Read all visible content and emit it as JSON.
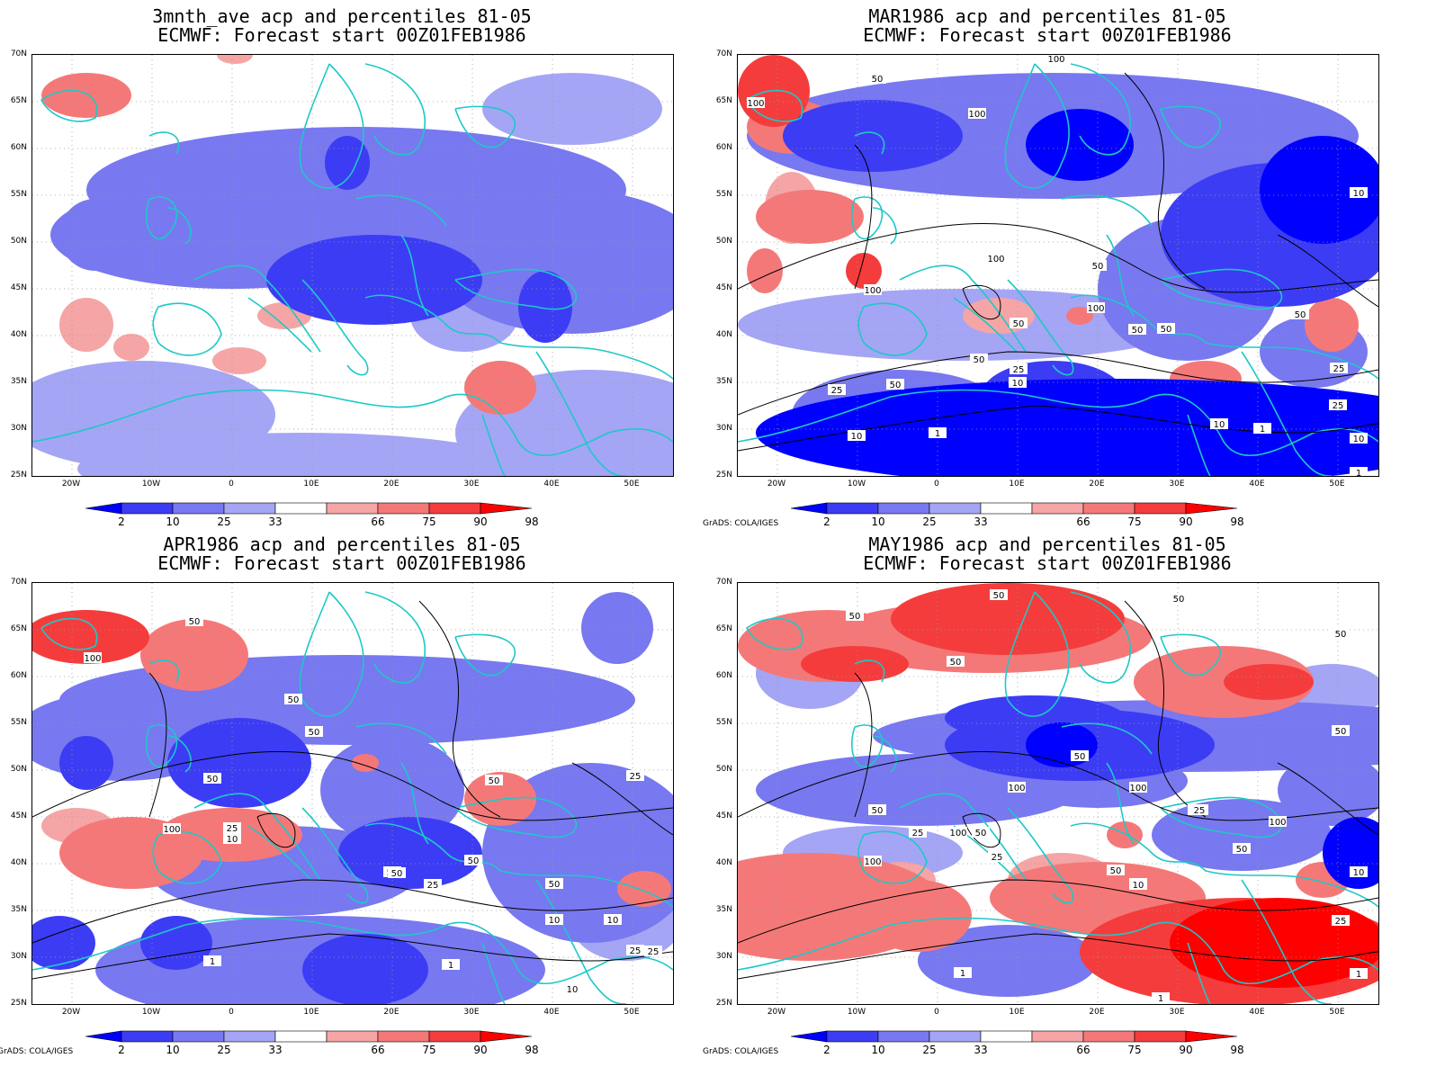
{
  "panels": [
    {
      "title_line1": "3mnth_ave acp and percentiles 81-05",
      "title_line2": "ECMWF: Forecast start 00Z01FEB1986",
      "credit": ""
    },
    {
      "title_line1": "MAR1986 acp and percentiles 81-05",
      "title_line2": "ECMWF: Forecast start 00Z01FEB1986",
      "credit": "GrADS: COLA/IGES"
    },
    {
      "title_line1": "APR1986 acp and percentiles 81-05",
      "title_line2": "ECMWF: Forecast start 00Z01FEB1986",
      "credit": "GrADS: COLA/IGES"
    },
    {
      "title_line1": "MAY1986 acp and percentiles 81-05",
      "title_line2": "ECMWF: Forecast start 00Z01FEB1986",
      "credit": "GrADS: COLA/IGES"
    }
  ],
  "lat_labels": [
    "70N",
    "65N",
    "60N",
    "55N",
    "50N",
    "45N",
    "40N",
    "35N",
    "30N",
    "25N"
  ],
  "lon_labels": [
    "20W",
    "10W",
    "0",
    "10E",
    "20E",
    "30E",
    "40E",
    "50E"
  ],
  "colorbar": {
    "labels": [
      "2",
      "10",
      "25",
      "33",
      "66",
      "75",
      "90",
      "98"
    ],
    "colors": [
      "#0000ff",
      "#3c3cf5",
      "#7878f0",
      "#a5a5f5",
      "#ffffff",
      "#f5a5a5",
      "#f57878",
      "#f53c3c",
      "#ff0000"
    ]
  },
  "contour_labels": {
    "mar": [
      "100",
      "50",
      "100",
      "100",
      "100",
      "25",
      "50",
      "100",
      "50",
      "100",
      "50",
      "50",
      "50",
      "25",
      "10",
      "1",
      "10",
      "50",
      "25",
      "10",
      "1",
      "10",
      "50",
      "10",
      "25",
      "1"
    ],
    "apr": [
      "50",
      "100",
      "50",
      "50",
      "50",
      "50",
      "100",
      "50",
      "25",
      "50",
      "25",
      "10",
      "1",
      "1",
      "10",
      "25",
      "50",
      "10",
      "50",
      "25",
      "10",
      "25",
      "25"
    ],
    "may": [
      "50",
      "50",
      "50",
      "50",
      "50",
      "50",
      "50",
      "100",
      "100",
      "50",
      "25",
      "100",
      "100",
      "50",
      "25",
      "10",
      "50",
      "10",
      "25",
      "25",
      "1",
      "1",
      "100",
      "50",
      "25",
      "10",
      "1"
    ]
  }
}
